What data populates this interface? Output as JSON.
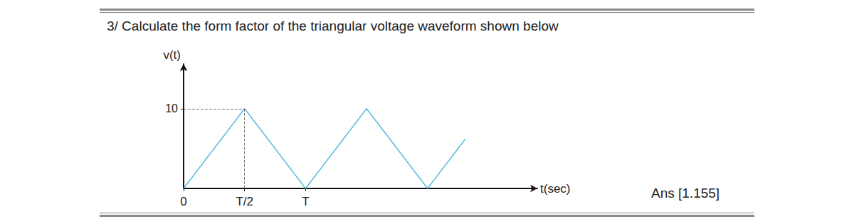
{
  "question": "3/ Calculate the form factor of the triangular voltage waveform shown below",
  "answer": "Ans [1.155]",
  "chart_data": {
    "type": "line",
    "x_label": "t(sec)",
    "y_label": "v(t)",
    "x": [
      0,
      0.5,
      1,
      1.5,
      2,
      2.31
    ],
    "values": [
      0,
      10,
      0,
      10,
      0,
      6.2
    ],
    "color": "#5bb8e0",
    "xlim": [
      0,
      2.9
    ],
    "ylim": [
      0,
      15.6
    ],
    "xticks": [
      0,
      {
        "value": 0.5,
        "label": "T/2"
      },
      {
        "value": 1,
        "label": "T"
      }
    ],
    "yticks": [
      10
    ],
    "grid": false
  }
}
